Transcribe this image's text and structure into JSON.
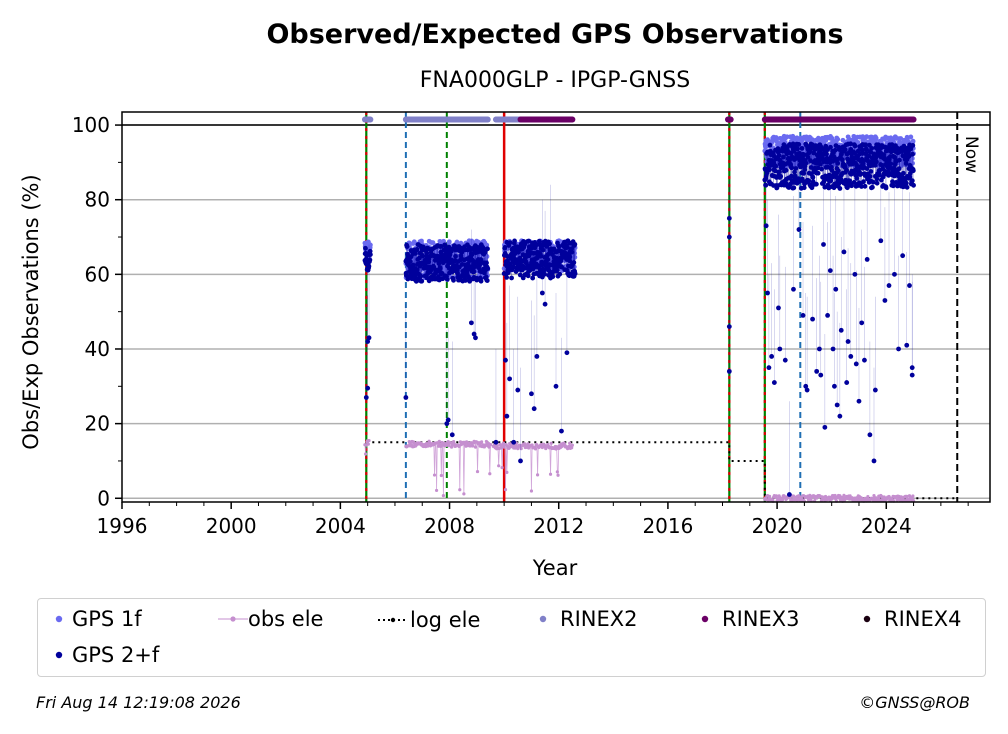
{
  "chart_data": {
    "type": "scatter",
    "title": "Observed/Expected GPS Observations",
    "subtitle": "FNA000GLP - IPGP-GNSS",
    "xlabel": "Year",
    "ylabel": "Obs/Exp Observations (%)",
    "xlim": [
      1996,
      2027.8
    ],
    "ylim": [
      -1,
      103.5
    ],
    "xticks": [
      "1996",
      "2000",
      "2004",
      "2008",
      "2012",
      "2016",
      "2020",
      "2024"
    ],
    "yticks": [
      "0",
      "20",
      "40",
      "60",
      "80",
      "100"
    ],
    "grid": "horizontal",
    "now_label": "Now",
    "now_year": 2026.6,
    "equipment_changes": [
      {
        "year": 2004.95,
        "type": "receiver+antenna",
        "colors": [
          "#008000",
          "#d40000"
        ]
      },
      {
        "year": 2006.4,
        "type": "antenna",
        "colors": [
          "#1f6fb4"
        ]
      },
      {
        "year": 2007.9,
        "type": "receiver",
        "colors": [
          "#008000"
        ]
      },
      {
        "year": 2010.0,
        "type": "site change",
        "colors": [
          "#e00000"
        ]
      },
      {
        "year": 2018.25,
        "type": "receiver+antenna",
        "colors": [
          "#008000",
          "#d40000"
        ]
      },
      {
        "year": 2019.55,
        "type": "receiver+antenna",
        "colors": [
          "#008000",
          "#d40000"
        ]
      },
      {
        "year": 2020.85,
        "type": "antenna",
        "colors": [
          "#1f6fb4"
        ]
      }
    ],
    "series": [
      {
        "name": "GPS 1f",
        "color": "#6a6af0",
        "segments": [
          {
            "x": [
              2004.9,
              2005.1
            ],
            "y_mean": 66,
            "spread": 3
          },
          {
            "x": [
              2006.4,
              2009.4
            ],
            "y_mean": 64,
            "spread": 5
          },
          {
            "x": [
              2010.0,
              2012.6
            ],
            "y_mean": 65,
            "spread": 4
          },
          {
            "x": [
              2019.55,
              2025.0
            ],
            "y_mean": 93,
            "spread": 4
          }
        ]
      },
      {
        "name": "GPS 2+f",
        "color": "#00009c",
        "segments": [
          {
            "x": [
              2004.9,
              2005.1
            ],
            "y_mean": 64,
            "spread": 3
          },
          {
            "x": [
              2006.4,
              2009.4
            ],
            "y_mean": 63,
            "spread": 5
          },
          {
            "x": [
              2010.0,
              2012.6
            ],
            "y_mean": 64,
            "spread": 5
          },
          {
            "x": [
              2019.55,
              2025.0
            ],
            "y_mean": 89,
            "spread": 6
          }
        ],
        "outliers": [
          [
            2004.95,
            27
          ],
          [
            2005.05,
            43
          ],
          [
            2005.0,
            42
          ],
          [
            2005.0,
            29.5
          ],
          [
            2006.4,
            27
          ],
          [
            2007.9,
            20
          ],
          [
            2007.95,
            21
          ],
          [
            2008.1,
            17
          ],
          [
            2008.8,
            47
          ],
          [
            2008.9,
            44
          ],
          [
            2008.95,
            43
          ],
          [
            2009.7,
            15
          ],
          [
            2010.05,
            37
          ],
          [
            2010.1,
            22
          ],
          [
            2010.2,
            32
          ],
          [
            2010.35,
            15
          ],
          [
            2010.5,
            29
          ],
          [
            2010.6,
            10
          ],
          [
            2011.0,
            28
          ],
          [
            2011.1,
            24
          ],
          [
            2011.2,
            38
          ],
          [
            2011.4,
            55
          ],
          [
            2011.5,
            52
          ],
          [
            2011.7,
            59
          ],
          [
            2011.9,
            30
          ],
          [
            2012.1,
            18
          ],
          [
            2012.3,
            39
          ],
          [
            2018.25,
            75
          ],
          [
            2018.25,
            70
          ],
          [
            2018.25,
            46
          ],
          [
            2018.25,
            34
          ],
          [
            2019.6,
            73
          ],
          [
            2019.65,
            55
          ],
          [
            2019.7,
            35
          ],
          [
            2019.8,
            38
          ],
          [
            2019.9,
            31
          ],
          [
            2020.05,
            51
          ],
          [
            2020.1,
            40
          ],
          [
            2020.3,
            37
          ],
          [
            2020.45,
            1
          ],
          [
            2020.6,
            56
          ],
          [
            2020.8,
            72
          ],
          [
            2020.95,
            49
          ],
          [
            2021.05,
            30
          ],
          [
            2021.1,
            29
          ],
          [
            2021.3,
            48
          ],
          [
            2021.45,
            34
          ],
          [
            2021.55,
            40
          ],
          [
            2021.6,
            33
          ],
          [
            2021.7,
            68
          ],
          [
            2021.75,
            19
          ],
          [
            2021.85,
            49
          ],
          [
            2021.95,
            61
          ],
          [
            2022.05,
            40
          ],
          [
            2022.1,
            30
          ],
          [
            2022.15,
            56
          ],
          [
            2022.2,
            25
          ],
          [
            2022.3,
            22
          ],
          [
            2022.35,
            45
          ],
          [
            2022.45,
            66
          ],
          [
            2022.55,
            31
          ],
          [
            2022.6,
            42
          ],
          [
            2022.7,
            38
          ],
          [
            2022.85,
            60
          ],
          [
            2022.9,
            36
          ],
          [
            2023.0,
            26
          ],
          [
            2023.1,
            47
          ],
          [
            2023.2,
            37
          ],
          [
            2023.3,
            64
          ],
          [
            2023.4,
            17
          ],
          [
            2023.55,
            10
          ],
          [
            2023.6,
            29
          ],
          [
            2023.8,
            69
          ],
          [
            2023.95,
            53
          ],
          [
            2024.1,
            57
          ],
          [
            2024.3,
            60
          ],
          [
            2024.45,
            40
          ],
          [
            2024.6,
            65
          ],
          [
            2024.75,
            41
          ],
          [
            2024.85,
            57
          ],
          [
            2024.95,
            33
          ],
          [
            2024.95,
            35
          ]
        ]
      },
      {
        "name": "obs ele",
        "color": "#c58fcf",
        "segments": [
          {
            "x": [
              2004.9,
              2005.05
            ],
            "y": 15
          },
          {
            "x": [
              2006.4,
              2009.5
            ],
            "y": 14.5
          },
          {
            "x": [
              2009.6,
              2012.5
            ],
            "y": 14
          },
          {
            "x": [
              2019.55,
              2025.0
            ],
            "y": 0
          }
        ]
      },
      {
        "name": "log ele",
        "color": "#000000",
        "steps": [
          {
            "x": [
              2004.95,
              2018.25
            ],
            "y": 15
          },
          {
            "x": [
              2018.25,
              2019.55
            ],
            "y": 10
          },
          {
            "x": [
              2019.55,
              2026.6
            ],
            "y": 0
          }
        ]
      },
      {
        "name": "RINEX2",
        "color": "#8080c8",
        "y": 101.5,
        "ranges": [
          [
            2004.9,
            2005.1
          ],
          [
            2006.4,
            2009.4
          ],
          [
            2009.7,
            2011.0
          ]
        ]
      },
      {
        "name": "RINEX3",
        "color": "#6b0066",
        "y": 101.5,
        "ranges": [
          [
            2010.6,
            2012.5
          ],
          [
            2018.2,
            2018.3
          ],
          [
            2019.55,
            2025.0
          ]
        ]
      },
      {
        "name": "RINEX4",
        "color": "#1a0010",
        "y": 101.5,
        "ranges": []
      }
    ]
  },
  "legend": [
    {
      "label": "GPS 1f",
      "marker": "dot",
      "color": "#6a6af0"
    },
    {
      "label": "obs ele",
      "marker": "line-dot",
      "color": "#c58fcf"
    },
    {
      "label": "log ele",
      "marker": "dotted-line",
      "color": "#000000"
    },
    {
      "label": "RINEX2",
      "marker": "dot",
      "color": "#8080c8"
    },
    {
      "label": "RINEX3",
      "marker": "dot",
      "color": "#6b0066"
    },
    {
      "label": "RINEX4",
      "marker": "dot",
      "color": "#1a0010"
    },
    {
      "label": "GPS 2+f",
      "marker": "dot",
      "color": "#00009c"
    }
  ],
  "footer": {
    "timestamp": "Fri Aug 14 12:19:08 2026",
    "credit": "©GNSS@ROB"
  }
}
